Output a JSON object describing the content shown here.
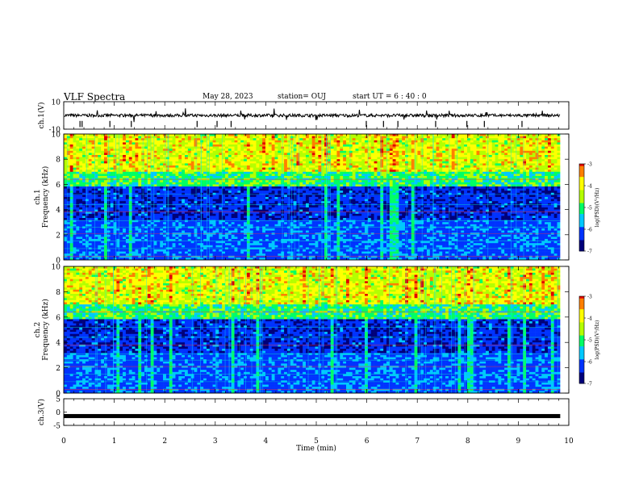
{
  "header": {
    "title": "VLF Spectra",
    "date": "May 28, 2023",
    "station": "station= OUJ",
    "start": "start  UT  =   6  : 40 : 0"
  },
  "chart_data": {
    "type": "heatmap",
    "x": {
      "label": "Time (min)",
      "range": [
        0,
        10
      ],
      "ticks": [
        0,
        1,
        2,
        3,
        4,
        5,
        6,
        7,
        8,
        9,
        10
      ],
      "data_end": 9.83
    },
    "panels": [
      {
        "id": "ch1-wave",
        "type": "line",
        "ylabel": "ch.1(V)",
        "ylim": [
          -10,
          10
        ],
        "ticks": [
          "10",
          "-10"
        ],
        "baseline": 0,
        "color": "#000000"
      },
      {
        "id": "ch1-spec",
        "type": "heatmap",
        "ylabel": "ch.1\nFrequency (kHz)",
        "ylim": [
          0,
          10
        ],
        "ticks": [
          "0",
          "2",
          "4",
          "6",
          "8",
          "10"
        ],
        "colorbar": {
          "label": "log(PSD)(V²/Hz)",
          "range": [
            -7,
            -3
          ],
          "ticks": [
            "-3",
            "-4",
            "-5",
            "-6",
            "-7"
          ]
        }
      },
      {
        "id": "ch2-spec",
        "type": "heatmap",
        "ylabel": "ch.2\nFrequency (kHz)",
        "ylim": [
          0,
          10
        ],
        "ticks": [
          "0",
          "2",
          "4",
          "6",
          "8",
          "10"
        ],
        "colorbar": {
          "label": "log(PSD)(V²/Hz)",
          "range": [
            -7,
            -3
          ],
          "ticks": [
            "-3",
            "-4",
            "-5",
            "-6",
            "-7"
          ]
        }
      },
      {
        "id": "ch3-wave",
        "type": "line",
        "ylabel": "ch.3(V)",
        "ylim": [
          -5,
          5
        ],
        "ticks": [
          "5",
          "0",
          "-5"
        ],
        "level": -1.5,
        "color": "#000000"
      }
    ],
    "colormap": [
      "#00007a",
      "#0033ff",
      "#00c8ff",
      "#00ff64",
      "#b4ff00",
      "#ffff00",
      "#ff7f00",
      "#e00000"
    ]
  }
}
